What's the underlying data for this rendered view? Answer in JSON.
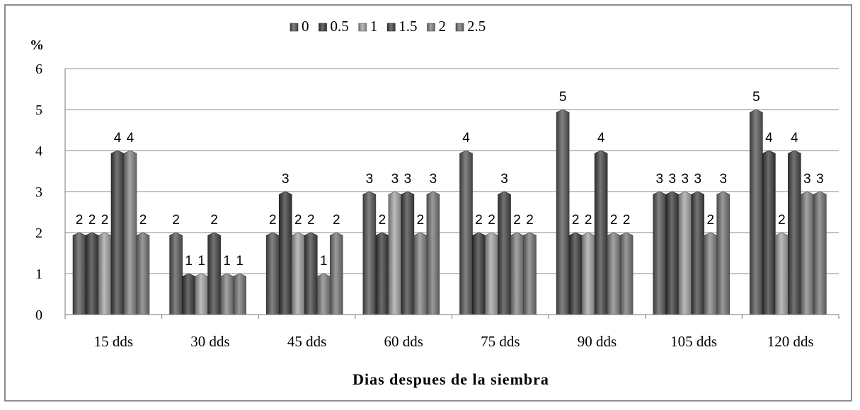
{
  "chart_data": {
    "type": "bar",
    "title": "",
    "ylabel": "%",
    "xlabel": "Dias despues de la siembra",
    "ylim": [
      0,
      6
    ],
    "yticks": [
      0,
      1,
      2,
      3,
      4,
      5,
      6
    ],
    "grid": true,
    "legend_position": "top",
    "categories": [
      "15 dds",
      "30 dds",
      "45 dds",
      "60 dds",
      "75 dds",
      "90 dds",
      "105 dds",
      "120 dds"
    ],
    "series": [
      {
        "name": "0",
        "color": "#5a5a5a",
        "values": [
          2,
          2,
          2,
          3,
          4,
          5,
          3,
          5
        ]
      },
      {
        "name": "0.5",
        "color": "#3c3c3c",
        "values": [
          2,
          1,
          3,
          2,
          2,
          2,
          3,
          4
        ]
      },
      {
        "name": "1",
        "color": "#a6a6a6",
        "values": [
          2,
          1,
          2,
          3,
          2,
          2,
          3,
          2
        ]
      },
      {
        "name": "1.5",
        "color": "#454545",
        "values": [
          4,
          2,
          2,
          3,
          3,
          4,
          3,
          4
        ]
      },
      {
        "name": "2",
        "color": "#858585",
        "values": [
          4,
          1,
          1,
          2,
          2,
          2,
          2,
          3
        ]
      },
      {
        "name": "2.5",
        "color": "#787878",
        "values": [
          2,
          1,
          2,
          3,
          2,
          2,
          3,
          3
        ]
      }
    ]
  }
}
